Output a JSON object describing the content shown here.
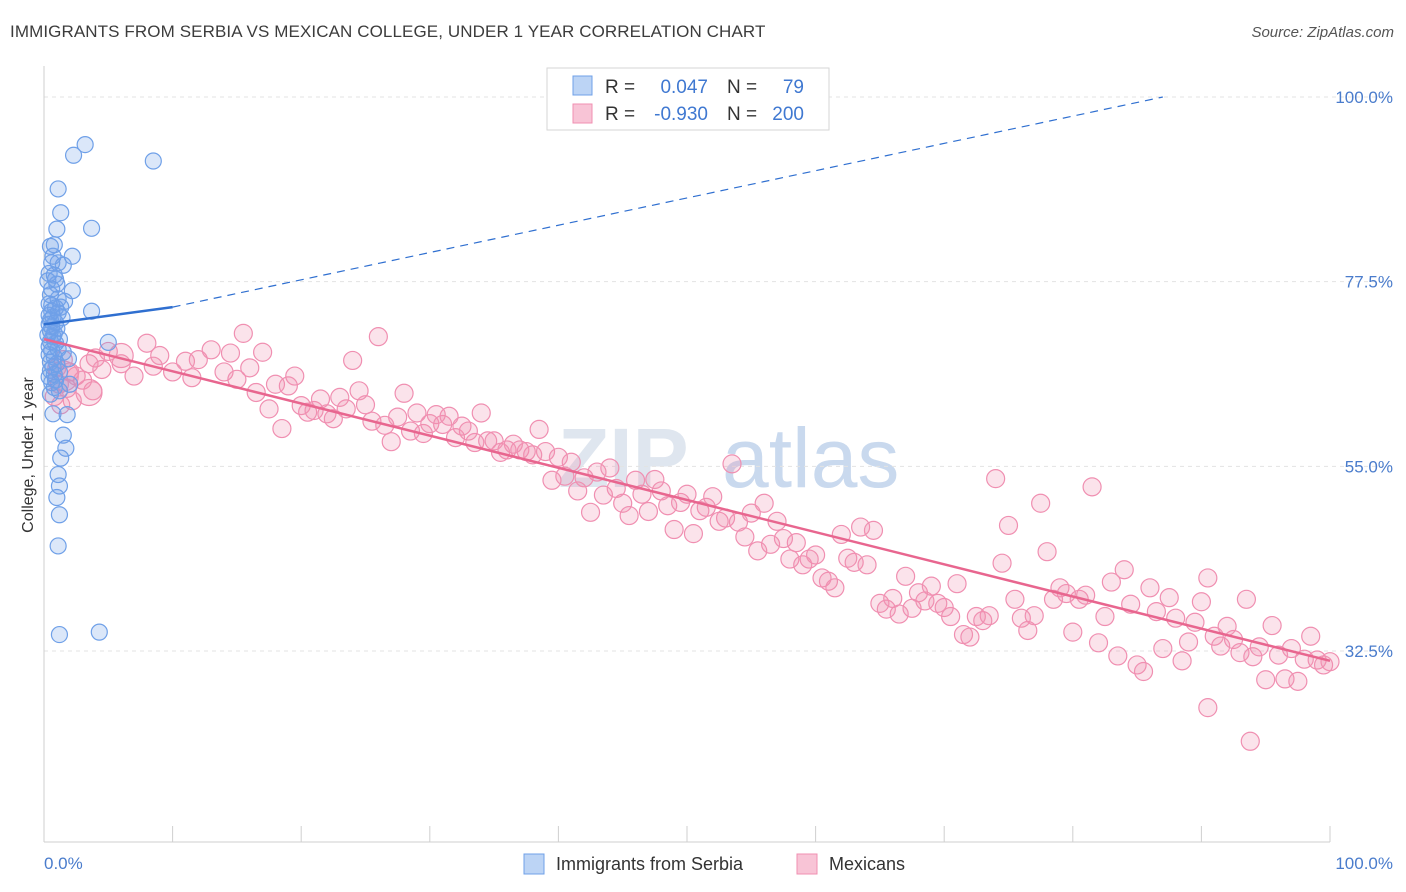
{
  "title": "IMMIGRANTS FROM SERBIA VS MEXICAN COLLEGE, UNDER 1 YEAR CORRELATION CHART",
  "source": "Source: ZipAtlas.com",
  "watermark": {
    "zip": "ZIP",
    "atlas": "atlas"
  },
  "colors": {
    "serbia": "#6fa0e8",
    "serbia_line": "#2f6fd0",
    "mexicans": "#f08fb1",
    "mexicans_line": "#e8668f"
  },
  "legend_box": {
    "rows": [
      {
        "r_label": "R =",
        "r_value": "0.047",
        "n_label": "N =",
        "n_value": "79"
      },
      {
        "r_label": "R =",
        "r_value": "-0.930",
        "n_label": "N =",
        "n_value": "200"
      }
    ]
  },
  "bottom_legend": [
    "Immigrants from Serbia",
    "Mexicans"
  ],
  "chart_data": {
    "type": "scatter",
    "title": "IMMIGRANTS FROM SERBIA VS MEXICAN COLLEGE, UNDER 1 YEAR CORRELATION CHART",
    "xlabel": "",
    "ylabel": "College, Under 1 year",
    "xlim": [
      0,
      100
    ],
    "ylim": [
      10,
      100
    ],
    "x_tick_labels": [
      "0.0%",
      "100.0%"
    ],
    "y_ticks": [
      32.5,
      55.0,
      77.5,
      100.0
    ],
    "y_tick_labels": [
      "32.5%",
      "55.0%",
      "77.5%",
      "100.0%"
    ],
    "grid": true,
    "series": [
      {
        "name": "Immigrants from Serbia",
        "r": 0.047,
        "n": 79,
        "trend_solid": {
          "x": [
            0,
            10
          ],
          "y": [
            72.3,
            74.4
          ]
        },
        "trend_dashed": {
          "x": [
            10,
            87
          ],
          "y": [
            74.4,
            100
          ]
        },
        "points": [
          [
            3.2,
            94.2
          ],
          [
            2.3,
            92.9
          ],
          [
            8.5,
            92.2
          ],
          [
            1.1,
            88.8
          ],
          [
            1.3,
            85.9
          ],
          [
            3.7,
            84.0
          ],
          [
            1.0,
            83.9
          ],
          [
            0.8,
            82.0
          ],
          [
            0.5,
            81.8
          ],
          [
            0.7,
            80.6
          ],
          [
            2.2,
            80.6
          ],
          [
            1.1,
            79.8
          ],
          [
            0.6,
            79.8
          ],
          [
            1.5,
            79.5
          ],
          [
            0.4,
            78.5
          ],
          [
            0.8,
            78.3
          ],
          [
            0.9,
            77.8
          ],
          [
            0.3,
            77.6
          ],
          [
            1.0,
            77.2
          ],
          [
            0.6,
            76.6
          ],
          [
            2.2,
            76.4
          ],
          [
            0.5,
            75.9
          ],
          [
            1.1,
            75.4
          ],
          [
            1.6,
            75.1
          ],
          [
            0.4,
            74.8
          ],
          [
            0.6,
            74.6
          ],
          [
            1.3,
            74.4
          ],
          [
            0.9,
            74.3
          ],
          [
            0.6,
            73.9
          ],
          [
            3.7,
            73.9
          ],
          [
            1.1,
            73.7
          ],
          [
            0.4,
            73.4
          ],
          [
            0.7,
            73.2
          ],
          [
            1.4,
            73.1
          ],
          [
            0.5,
            72.8
          ],
          [
            0.9,
            72.5
          ],
          [
            0.4,
            72.3
          ],
          [
            0.6,
            72.0
          ],
          [
            1.0,
            71.8
          ],
          [
            0.5,
            71.5
          ],
          [
            0.8,
            71.2
          ],
          [
            0.3,
            71.0
          ],
          [
            0.7,
            70.8
          ],
          [
            1.2,
            70.5
          ],
          [
            0.5,
            70.2
          ],
          [
            5.0,
            70.1
          ],
          [
            0.9,
            70.0
          ],
          [
            0.4,
            69.6
          ],
          [
            1.1,
            69.3
          ],
          [
            0.6,
            69.1
          ],
          [
            1.5,
            68.9
          ],
          [
            0.4,
            68.6
          ],
          [
            0.8,
            68.3
          ],
          [
            1.9,
            68.1
          ],
          [
            0.5,
            67.7
          ],
          [
            1.0,
            67.5
          ],
          [
            0.7,
            67.1
          ],
          [
            0.5,
            66.7
          ],
          [
            1.2,
            66.5
          ],
          [
            0.8,
            66.2
          ],
          [
            0.4,
            65.9
          ],
          [
            0.9,
            65.5
          ],
          [
            0.6,
            65.2
          ],
          [
            2.0,
            65.0
          ],
          [
            0.8,
            64.6
          ],
          [
            1.2,
            64.2
          ],
          [
            0.5,
            63.8
          ],
          [
            0.7,
            61.4
          ],
          [
            1.8,
            61.3
          ],
          [
            1.5,
            58.8
          ],
          [
            1.7,
            57.2
          ],
          [
            1.3,
            56.0
          ],
          [
            1.1,
            54.0
          ],
          [
            1.2,
            52.6
          ],
          [
            1.0,
            51.2
          ],
          [
            1.2,
            49.1
          ],
          [
            1.1,
            45.3
          ],
          [
            1.2,
            34.5
          ],
          [
            4.3,
            34.8
          ]
        ]
      },
      {
        "name": "Mexicans",
        "r": -0.93,
        "n": 200,
        "trend": {
          "x": [
            0,
            100
          ],
          "y": [
            70.5,
            31.3
          ]
        },
        "points": [
          [
            1.0,
            67.0
          ],
          [
            1.5,
            68.0
          ],
          [
            2.0,
            66.5
          ],
          [
            1.2,
            65.0
          ],
          [
            1.8,
            64.5
          ],
          [
            0.8,
            63.5
          ],
          [
            2.5,
            66.0
          ],
          [
            3.0,
            65.5
          ],
          [
            3.5,
            67.5
          ],
          [
            4.0,
            68.2
          ],
          [
            4.5,
            66.8
          ],
          [
            1.3,
            62.5
          ],
          [
            2.2,
            63.0
          ],
          [
            3.8,
            64.2
          ],
          [
            5.0,
            69.0
          ],
          [
            6.0,
            67.5
          ],
          [
            7.0,
            66.0
          ],
          [
            8.0,
            70.0
          ],
          [
            8.5,
            67.2
          ],
          [
            9.0,
            68.5
          ],
          [
            10.0,
            66.5
          ],
          [
            11.0,
            67.8
          ],
          [
            11.5,
            65.8
          ],
          [
            12.0,
            68.0
          ],
          [
            13.0,
            69.2
          ],
          [
            14.0,
            66.5
          ],
          [
            14.5,
            68.8
          ],
          [
            15.0,
            65.6
          ],
          [
            15.5,
            71.2
          ],
          [
            16.0,
            67.0
          ],
          [
            16.5,
            64.0
          ],
          [
            17.0,
            68.9
          ],
          [
            17.5,
            62.0
          ],
          [
            18.0,
            65.0
          ],
          [
            18.5,
            59.6
          ],
          [
            19.0,
            64.8
          ],
          [
            19.5,
            66.0
          ],
          [
            20.0,
            62.4
          ],
          [
            20.5,
            61.6
          ],
          [
            21.0,
            61.8
          ],
          [
            21.5,
            63.2
          ],
          [
            22.0,
            61.4
          ],
          [
            22.5,
            60.8
          ],
          [
            23.0,
            63.4
          ],
          [
            23.5,
            62.0
          ],
          [
            24.0,
            67.9
          ],
          [
            24.5,
            64.2
          ],
          [
            25.0,
            62.5
          ],
          [
            25.5,
            60.5
          ],
          [
            26.0,
            70.8
          ],
          [
            26.5,
            60.0
          ],
          [
            27.0,
            58.0
          ],
          [
            27.5,
            61.0
          ],
          [
            28.0,
            63.9
          ],
          [
            28.5,
            59.3
          ],
          [
            29.0,
            61.5
          ],
          [
            29.5,
            59.0
          ],
          [
            30.0,
            60.2
          ],
          [
            30.5,
            61.3
          ],
          [
            31.0,
            60.1
          ],
          [
            31.5,
            61.1
          ],
          [
            32.0,
            58.5
          ],
          [
            32.5,
            59.9
          ],
          [
            33.0,
            59.3
          ],
          [
            33.5,
            57.9
          ],
          [
            34.0,
            61.5
          ],
          [
            34.5,
            58.1
          ],
          [
            35.0,
            58.1
          ],
          [
            35.5,
            56.7
          ],
          [
            36.0,
            57.0
          ],
          [
            36.5,
            57.7
          ],
          [
            37.0,
            57.0
          ],
          [
            37.5,
            56.8
          ],
          [
            38.0,
            56.4
          ],
          [
            38.5,
            59.5
          ],
          [
            39.0,
            56.8
          ],
          [
            39.5,
            53.3
          ],
          [
            40.0,
            56.1
          ],
          [
            40.5,
            53.8
          ],
          [
            41.0,
            55.5
          ],
          [
            41.5,
            52.0
          ],
          [
            42.0,
            53.6
          ],
          [
            42.5,
            49.4
          ],
          [
            43.0,
            54.3
          ],
          [
            43.5,
            51.5
          ],
          [
            44.0,
            54.8
          ],
          [
            44.5,
            52.3
          ],
          [
            45.0,
            50.5
          ],
          [
            45.5,
            49.0
          ],
          [
            46.0,
            53.3
          ],
          [
            46.5,
            51.6
          ],
          [
            47.0,
            49.5
          ],
          [
            47.5,
            53.4
          ],
          [
            48.0,
            52.0
          ],
          [
            48.5,
            50.2
          ],
          [
            49.0,
            47.3
          ],
          [
            49.5,
            50.6
          ],
          [
            50.0,
            51.6
          ],
          [
            50.5,
            46.8
          ],
          [
            51.0,
            49.6
          ],
          [
            51.5,
            50.0
          ],
          [
            52.0,
            51.3
          ],
          [
            52.5,
            48.3
          ],
          [
            53.0,
            48.7
          ],
          [
            53.5,
            55.3
          ],
          [
            54.0,
            48.2
          ],
          [
            54.5,
            46.4
          ],
          [
            55.0,
            49.3
          ],
          [
            55.5,
            44.7
          ],
          [
            56.0,
            50.5
          ],
          [
            56.5,
            45.5
          ],
          [
            57.0,
            48.3
          ],
          [
            57.5,
            46.2
          ],
          [
            58.0,
            43.7
          ],
          [
            58.5,
            45.7
          ],
          [
            59.0,
            43.0
          ],
          [
            59.5,
            43.7
          ],
          [
            60.0,
            44.2
          ],
          [
            60.5,
            41.4
          ],
          [
            61.0,
            41.0
          ],
          [
            61.5,
            40.2
          ],
          [
            62.0,
            46.7
          ],
          [
            62.5,
            43.8
          ],
          [
            63.0,
            43.3
          ],
          [
            63.5,
            47.6
          ],
          [
            64.0,
            43.0
          ],
          [
            64.5,
            47.2
          ],
          [
            65.0,
            38.3
          ],
          [
            65.5,
            37.6
          ],
          [
            66.0,
            38.9
          ],
          [
            66.5,
            37.0
          ],
          [
            67.0,
            41.6
          ],
          [
            67.5,
            37.7
          ],
          [
            68.0,
            39.6
          ],
          [
            68.5,
            38.6
          ],
          [
            69.0,
            40.4
          ],
          [
            69.5,
            38.3
          ],
          [
            70.0,
            37.8
          ],
          [
            70.5,
            36.7
          ],
          [
            71.0,
            40.7
          ],
          [
            71.5,
            34.5
          ],
          [
            72.0,
            34.2
          ],
          [
            72.5,
            36.7
          ],
          [
            73.0,
            36.2
          ],
          [
            73.5,
            36.8
          ],
          [
            74.0,
            53.5
          ],
          [
            74.5,
            43.2
          ],
          [
            75.0,
            47.8
          ],
          [
            75.5,
            38.8
          ],
          [
            76.0,
            36.5
          ],
          [
            76.5,
            35.0
          ],
          [
            77.0,
            36.8
          ],
          [
            77.5,
            50.5
          ],
          [
            78.0,
            44.6
          ],
          [
            78.5,
            38.8
          ],
          [
            79.0,
            40.2
          ],
          [
            79.5,
            39.5
          ],
          [
            80.0,
            34.8
          ],
          [
            80.5,
            38.8
          ],
          [
            81.0,
            39.3
          ],
          [
            81.5,
            52.5
          ],
          [
            82.0,
            33.5
          ],
          [
            82.5,
            36.7
          ],
          [
            83.0,
            40.9
          ],
          [
            83.5,
            31.9
          ],
          [
            84.0,
            42.4
          ],
          [
            84.5,
            38.2
          ],
          [
            85.0,
            30.8
          ],
          [
            85.5,
            30.0
          ],
          [
            86.0,
            40.2
          ],
          [
            86.5,
            37.3
          ],
          [
            87.0,
            32.8
          ],
          [
            87.5,
            39.0
          ],
          [
            88.0,
            36.5
          ],
          [
            88.5,
            31.3
          ],
          [
            89.0,
            33.6
          ],
          [
            89.5,
            36.0
          ],
          [
            90.0,
            38.5
          ],
          [
            90.5,
            41.4
          ],
          [
            91.0,
            34.3
          ],
          [
            91.5,
            33.1
          ],
          [
            92.0,
            35.5
          ],
          [
            92.5,
            33.9
          ],
          [
            93.0,
            32.3
          ],
          [
            93.5,
            38.8
          ],
          [
            94.0,
            31.8
          ],
          [
            94.5,
            33.0
          ],
          [
            95.0,
            29.0
          ],
          [
            95.5,
            35.6
          ],
          [
            96.0,
            32.0
          ],
          [
            96.5,
            29.1
          ],
          [
            97.0,
            32.8
          ],
          [
            97.5,
            28.8
          ],
          [
            98.0,
            31.5
          ],
          [
            98.5,
            34.3
          ],
          [
            99.0,
            31.4
          ],
          [
            99.5,
            30.8
          ],
          [
            100.0,
            31.2
          ],
          [
            93.8,
            21.5
          ],
          [
            90.5,
            25.6
          ]
        ]
      }
    ]
  }
}
